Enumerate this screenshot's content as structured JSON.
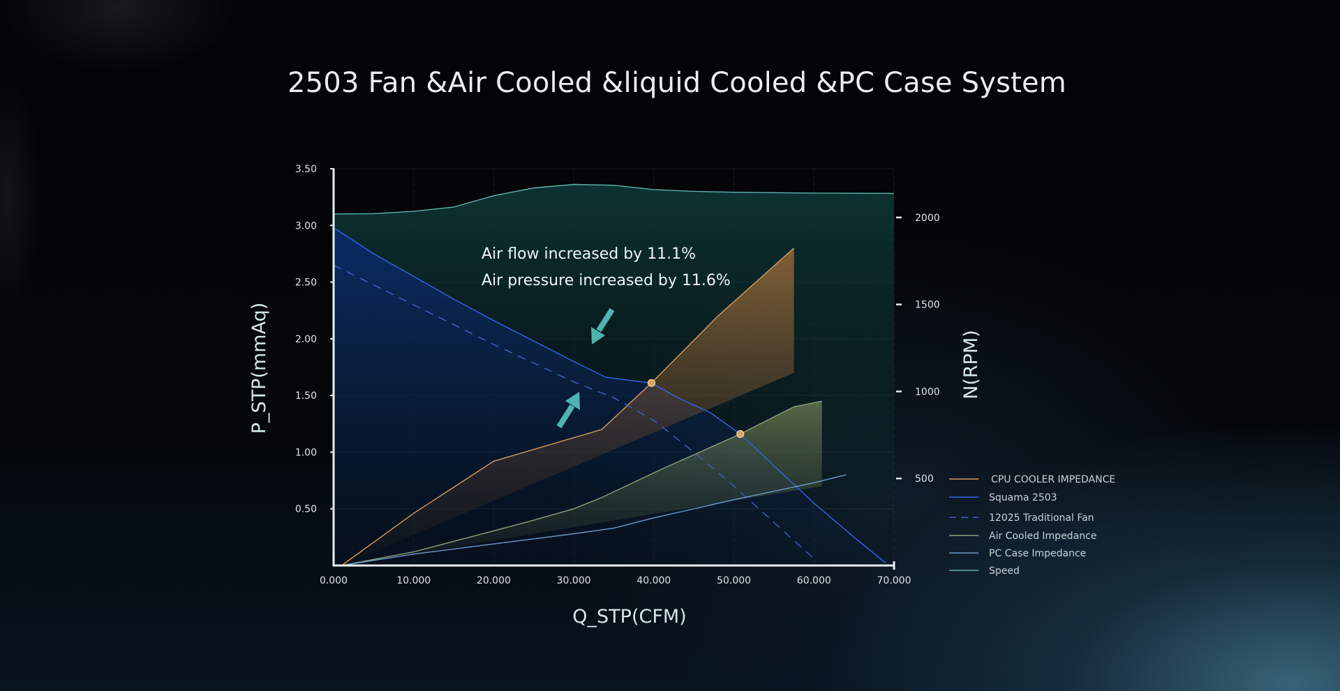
{
  "chart_data": {
    "type": "line",
    "title": "2503 Fan &Air Cooled &liquid Cooled &PC Case System",
    "xlabel": "Q_STP(CFM)",
    "ylabel": "P_STP(mmAq)",
    "y2label": "N(RPM)",
    "xlim": [
      0,
      70
    ],
    "ylim": [
      0,
      3.5
    ],
    "y2lim": [
      0,
      2280
    ],
    "x_ticks": [
      "0.000",
      "10.000",
      "20.000",
      "30.000",
      "40.000",
      "50.000",
      "60.000",
      "70.000"
    ],
    "y_ticks": [
      "0.50",
      "1.00",
      "1.50",
      "2.00",
      "2.50",
      "3.00",
      "3.50"
    ],
    "y2_ticks": [
      "500",
      "1000",
      "1500",
      "2000"
    ],
    "grid": true,
    "legend_position": "right",
    "annotations": [
      "Air flow increased by 11.1%",
      "Air pressure increased by 11.6%"
    ],
    "series": [
      {
        "name": "CPU COOLER IMPEDANCE",
        "axis": "left",
        "color": "#d99a61",
        "style": "solid",
        "fill": true,
        "x": [
          1,
          10,
          20,
          33.5,
          39.7,
          48,
          57.5,
          57.5
        ],
        "y": [
          0,
          0.46,
          0.92,
          1.2,
          1.61,
          2.2,
          2.8,
          1.7
        ]
      },
      {
        "name": "Squama 2503",
        "axis": "left",
        "color": "#3663e6",
        "style": "solid",
        "fill": true,
        "x": [
          0,
          5,
          10,
          15,
          20,
          25,
          30,
          34,
          39.7,
          43,
          47,
          50.8,
          55,
          60,
          65,
          69
        ],
        "y": [
          2.98,
          2.75,
          2.55,
          2.35,
          2.16,
          1.98,
          1.8,
          1.66,
          1.61,
          1.48,
          1.35,
          1.16,
          0.88,
          0.55,
          0.25,
          0.02
        ]
      },
      {
        "name": "12025 Traditional Fan",
        "axis": "left",
        "color": "#3c62c8",
        "style": "dashed",
        "fill": false,
        "x": [
          0,
          10,
          20,
          30,
          35,
          40,
          45,
          50,
          55,
          60
        ],
        "y": [
          2.65,
          2.3,
          1.95,
          1.62,
          1.48,
          1.28,
          1.0,
          0.7,
          0.38,
          0.06
        ]
      },
      {
        "name": "Air Cooled Impedance",
        "axis": "left",
        "color": "#8fa07c",
        "style": "solid",
        "fill": true,
        "x": [
          1,
          10,
          24,
          30,
          33.5,
          41,
          50.8,
          57.5,
          61,
          61
        ],
        "y": [
          0,
          0.12,
          0.38,
          0.5,
          0.6,
          0.85,
          1.16,
          1.4,
          1.45,
          0.7
        ]
      },
      {
        "name": "PC Case Impedance",
        "axis": "left",
        "color": "#6e9acb",
        "style": "solid",
        "fill": false,
        "x": [
          1,
          10,
          20,
          30,
          35,
          40,
          50,
          60,
          64
        ],
        "y": [
          0,
          0.1,
          0.19,
          0.28,
          0.33,
          0.42,
          0.58,
          0.73,
          0.8
        ]
      },
      {
        "name": "Speed",
        "axis": "right",
        "color": "#5fb0ae",
        "style": "solid",
        "fill": true,
        "x": [
          0,
          5,
          10,
          15,
          20,
          25,
          30,
          35,
          40,
          45,
          50,
          60,
          70
        ],
        "y": [
          2020,
          2022,
          2035,
          2060,
          2125,
          2170,
          2190,
          2185,
          2160,
          2150,
          2145,
          2140,
          2138
        ]
      }
    ],
    "operating_points": [
      {
        "x": 39.7,
        "y": 1.61
      },
      {
        "x": 50.8,
        "y": 1.16
      }
    ]
  }
}
